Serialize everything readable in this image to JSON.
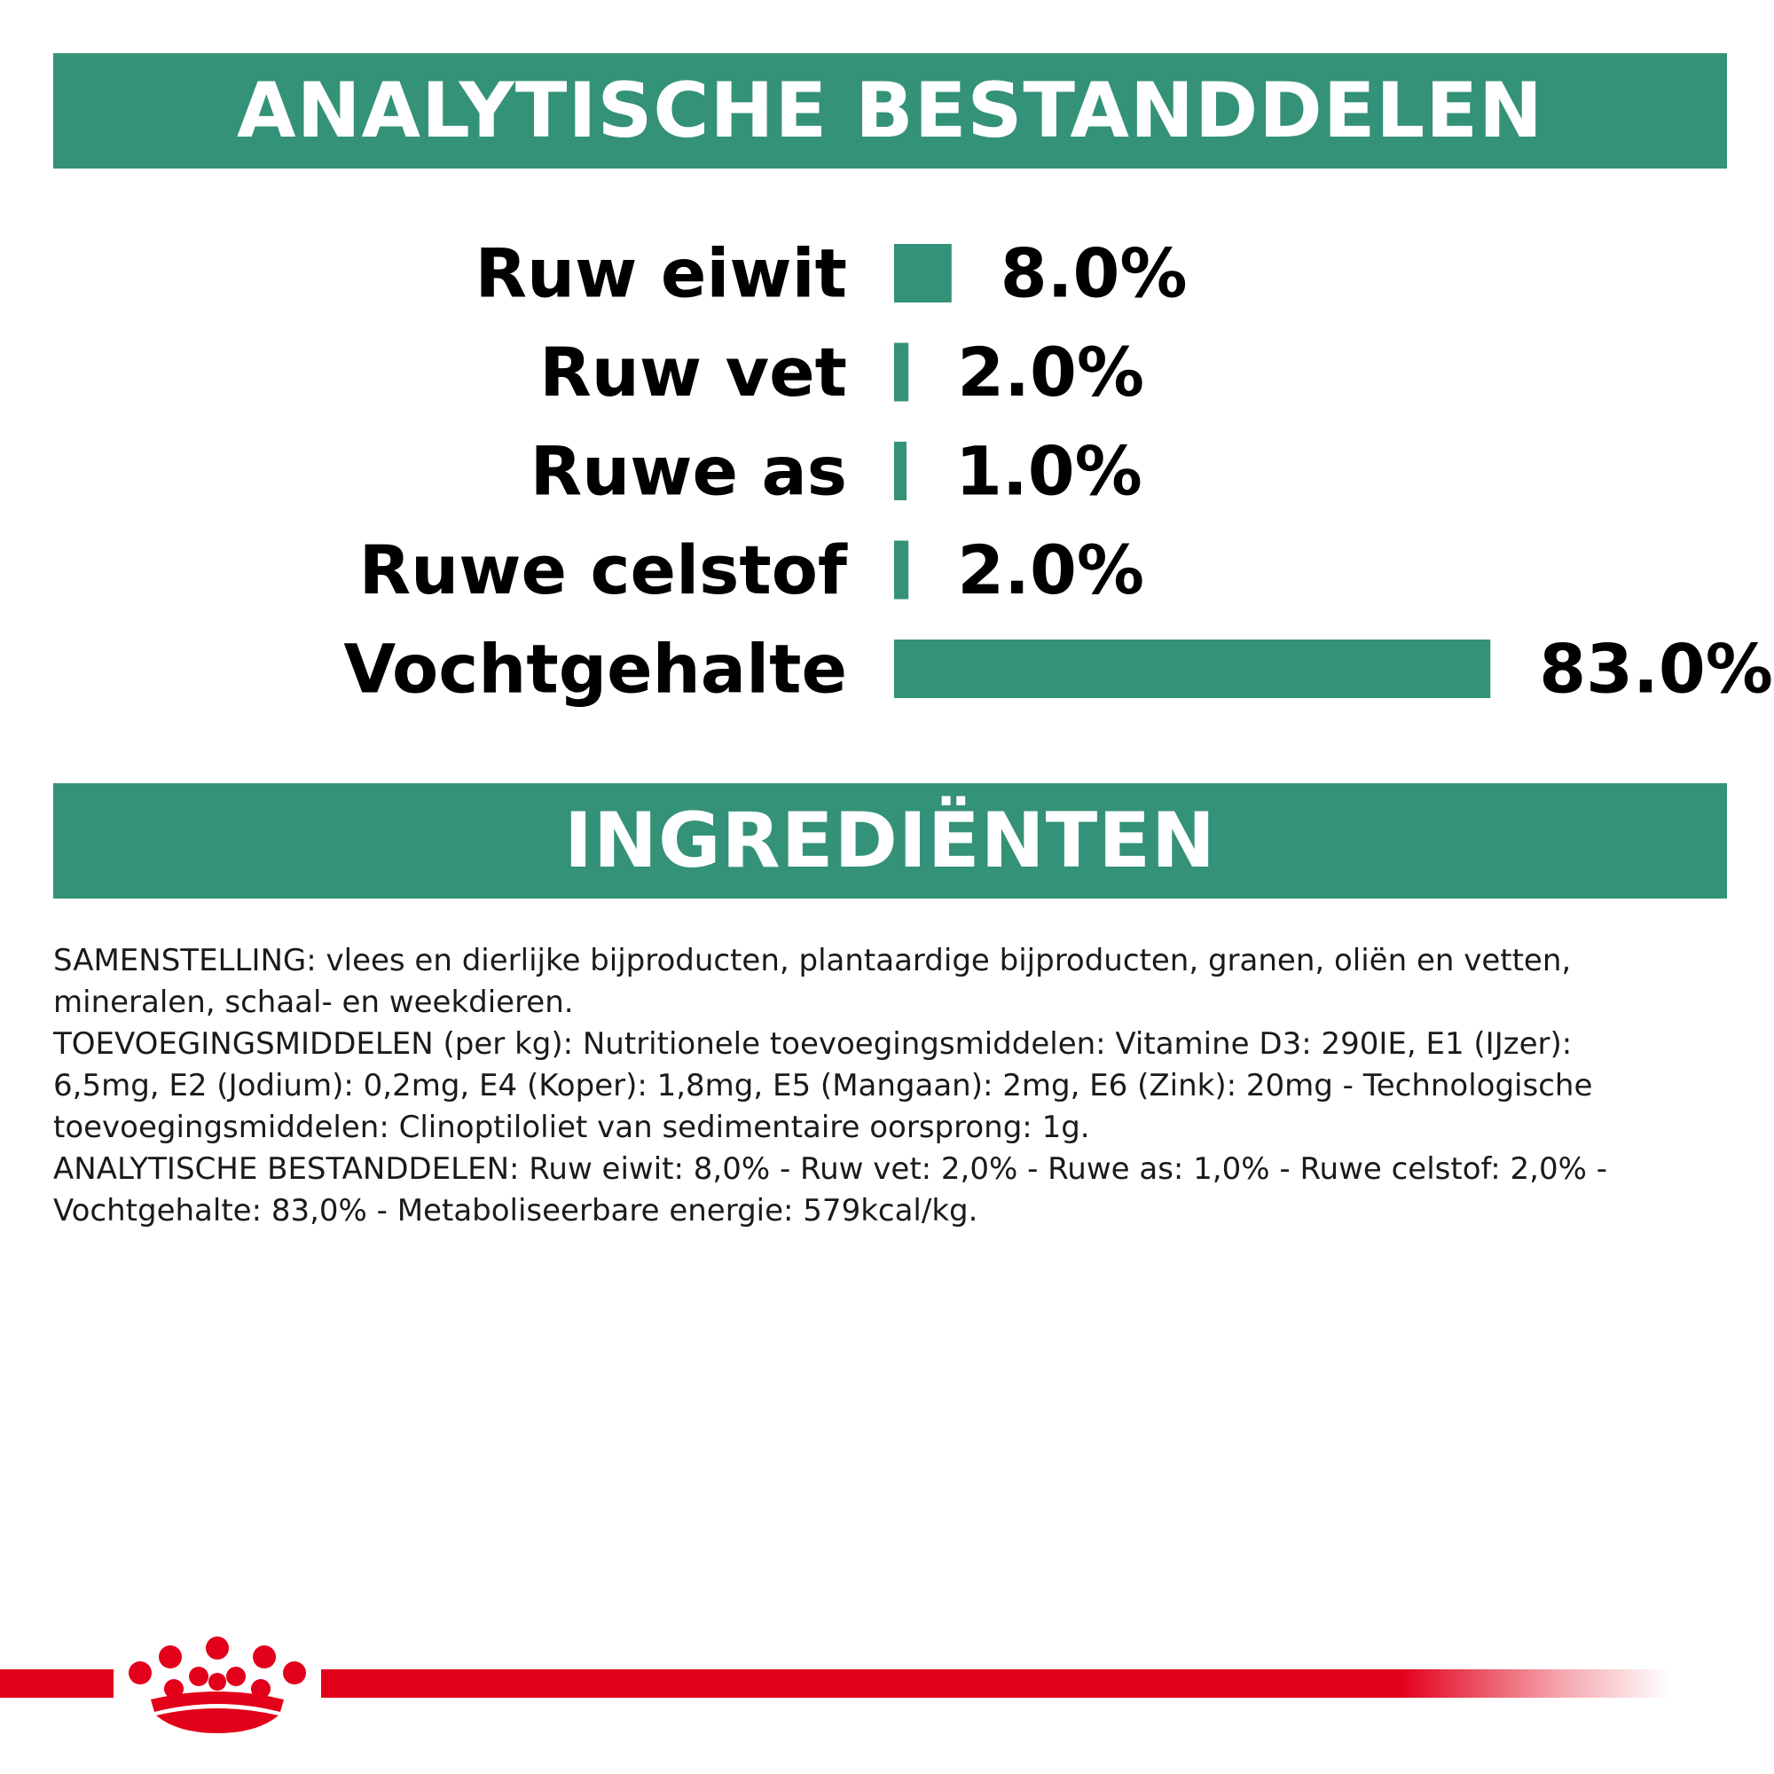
{
  "header": {
    "analysis_title": "ANALYTISCHE BESTANDDELEN",
    "ingredients_title": "INGREDIËNTEN"
  },
  "colors": {
    "brand_green": "#349278",
    "brand_red": "#e2001a",
    "text": "#000000"
  },
  "chart_data": {
    "type": "bar",
    "orientation": "horizontal",
    "categories": [
      "Ruw eiwit",
      "Ruw vet",
      "Ruwe as",
      "Ruwe celstof",
      "Vochtgehalte"
    ],
    "values": [
      8.0,
      2.0,
      1.0,
      2.0,
      83.0
    ],
    "value_labels": [
      "8.0%",
      "2.0%",
      "1.0%",
      "2.0%",
      "83.0%"
    ],
    "unit": "%",
    "title": "ANALYTISCHE BESTANDDELEN",
    "xlabel": "",
    "ylabel": "",
    "grid": false,
    "bar_color": "#349278"
  },
  "ingredients": {
    "lines": [
      "SAMENSTELLING: vlees en dierlijke bijproducten, plantaardige bijproducten, granen, oliën en vetten,",
      "mineralen, schaal- en weekdieren.",
      "TOEVOEGINGSMIDDELEN (per kg): Nutritionele toevoegingsmiddelen: Vitamine D3: 290IE, E1 (IJzer):",
      "6,5mg, E2 (Jodium): 0,2mg, E4 (Koper): 1,8mg, E5 (Mangaan): 2mg, E6 (Zink): 20mg - Technologische",
      "toevoegingsmiddelen: Clinoptiloliet van sedimentaire oorsprong: 1g.",
      "ANALYTISCHE BESTANDDELEN: Ruw eiwit: 8,0% - Ruw vet: 2,0% - Ruwe as: 1,0% - Ruwe celstof: 2,0% -",
      "Vochtgehalte: 83,0% - Metaboliseerbare energie: 579kcal/kg."
    ]
  },
  "footer": {
    "logo_icon": "royal-canin-crown-icon"
  }
}
